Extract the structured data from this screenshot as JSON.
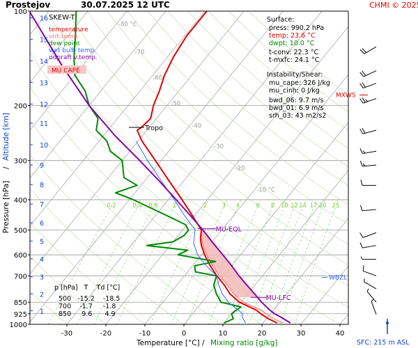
{
  "header": {
    "station": "Prostejov",
    "datetime": "30.07.2025 12 UTC",
    "credit": "CHMI © 2025"
  },
  "legend": {
    "title": "SKEW-T",
    "items": [
      {
        "label": "temperature",
        "color": "#dd0000"
      },
      {
        "label": "virt.temp.",
        "color": "#ff7777"
      },
      {
        "label": "dew point",
        "color": "#008800"
      },
      {
        "label": "wet bulb temp.",
        "color": "#3366ff"
      },
      {
        "label": "udpraft v.temp.",
        "color": "#8800aa"
      }
    ],
    "cape_label": "MU CAPE"
  },
  "surface": {
    "heading": "Surface:",
    "press": "press: 990.2 hPa",
    "temp": "temp: 23.6 °C",
    "dwpt": "dwpt: 10.0 °C",
    "tconv": "t-conv: 22.3 °C",
    "tmxfc": "t-mxfc: 24.1 °C"
  },
  "instability": {
    "heading": "Instability/Shear:",
    "mu_cape": "mu_cape: 326 J/kg",
    "mu_cinh": "mu_cinh: 0 J/kg",
    "bwd_06": "bwd_06: 9.7 m/s",
    "bwd_01": "bwd_01: 6.9 m/s",
    "srh_03": "srh_03: 43 m2/s2"
  },
  "table": {
    "header": "p [hPa]   T    Td [°C]",
    "rows": [
      "500   -15.2    -18.5",
      "700    -1.7     -1.8",
      "850     9.6      4.9"
    ]
  },
  "annotations": {
    "tropo": "Tropo",
    "mu_eql": "MU-EQL",
    "mu_lfc": "MU-LFC",
    "wbzl": "WBZL",
    "mxws": "MXWS",
    "sfc": "SFC: 215 m ASL"
  },
  "axes": {
    "xlabel": "Temperature [°C]",
    "xlabel_sep": "/",
    "xlabel2": "Mixing ratio [g/kg]",
    "ylabel_left": "Pressure [hPa]",
    "ylabel_sep": "/",
    "ylabel_right": "Altitude [km]"
  },
  "chart_data": {
    "type": "line",
    "title": "Prostejov 30.07.2025 12 UTC",
    "xlabel": "Temperature [°C] / Mixing ratio [g/kg]",
    "ylabel": "Pressure [hPa] / Altitude [km]",
    "xlim": [
      -35,
      45
    ],
    "ylim": [
      1000,
      100
    ],
    "y_log_scale": true,
    "pressure_ticks": [
      100,
      200,
      300,
      400,
      500,
      600,
      700,
      850,
      925,
      1000
    ],
    "temperature_ticks": [
      -30,
      -20,
      -10,
      0,
      10,
      20,
      30,
      40
    ],
    "altitude_ticks": [
      {
        "km": 1,
        "p": 905
      },
      {
        "km": 2,
        "p": 800
      },
      {
        "km": 3,
        "p": 705
      },
      {
        "km": 4,
        "p": 618
      },
      {
        "km": 5,
        "p": 542
      },
      {
        "km": 6,
        "p": 474
      },
      {
        "km": 7,
        "p": 413
      },
      {
        "km": 8,
        "p": 358
      },
      {
        "km": 9,
        "p": 310
      },
      {
        "km": 10,
        "p": 267
      },
      {
        "km": 11,
        "p": 228
      },
      {
        "km": 12,
        "p": 198
      },
      {
        "km": 13,
        "p": 169
      },
      {
        "km": 14,
        "p": 144
      },
      {
        "km": 15,
        "p": 123
      },
      {
        "km": 16,
        "p": 105
      }
    ],
    "isotherm_labels": [
      {
        "t": -80,
        "label": "-80 °C"
      },
      {
        "t": -70,
        "label": "-70"
      },
      {
        "t": -60,
        "label": "-60"
      },
      {
        "t": -50,
        "label": "-50"
      },
      {
        "t": -40,
        "label": "-40"
      },
      {
        "t": -30,
        "label": "-30"
      },
      {
        "t": -20,
        "label": "-20"
      },
      {
        "t": -10,
        "label": "-10 °C"
      }
    ],
    "mixing_ratio_labels": [
      "0.2",
      "0.4",
      "0.6",
      "1",
      "2",
      "3",
      "4",
      "6",
      "8",
      "10",
      "12",
      "14",
      "17",
      "20",
      "25"
    ],
    "mixing_ratio_values": [
      0.2,
      0.4,
      0.6,
      1,
      2,
      3,
      4,
      6,
      8,
      10,
      12,
      14,
      17,
      20,
      25
    ],
    "series": [
      {
        "name": "temperature",
        "color": "#dd0000",
        "points": [
          [
            990,
            23.6
          ],
          [
            960,
            20.5
          ],
          [
            925,
            17.5
          ],
          [
            900,
            15.5
          ],
          [
            850,
            9.6
          ],
          [
            800,
            5.5
          ],
          [
            750,
            2.2
          ],
          [
            700,
            -1.7
          ],
          [
            650,
            -5.5
          ],
          [
            600,
            -9.2
          ],
          [
            560,
            -12.0
          ],
          [
            530,
            -13.8
          ],
          [
            500,
            -15.2
          ],
          [
            450,
            -20.5
          ],
          [
            400,
            -26.5
          ],
          [
            350,
            -33.5
          ],
          [
            300,
            -41.5
          ],
          [
            260,
            -49.0
          ],
          [
            240,
            -52.5
          ],
          [
            235,
            -52.0
          ],
          [
            220,
            -51.5
          ],
          [
            200,
            -53.5
          ],
          [
            180,
            -55.0
          ],
          [
            160,
            -57.0
          ],
          [
            140,
            -58.5
          ],
          [
            120,
            -59.5
          ],
          [
            100,
            -59.5
          ]
        ]
      },
      {
        "name": "virt.temp.",
        "color": "#ff7777",
        "points": [
          [
            990,
            25.2
          ],
          [
            960,
            21.9
          ],
          [
            925,
            18.8
          ],
          [
            900,
            16.8
          ],
          [
            850,
            10.6
          ],
          [
            800,
            6.4
          ],
          [
            750,
            3.0
          ],
          [
            700,
            -1.0
          ],
          [
            650,
            -4.9
          ],
          [
            600,
            -8.7
          ],
          [
            560,
            -11.6
          ],
          [
            530,
            -13.5
          ],
          [
            500,
            -15.0
          ]
        ]
      },
      {
        "name": "dew point",
        "color": "#008800",
        "points": [
          [
            990,
            10.0
          ],
          [
            960,
            11.5
          ],
          [
            925,
            10.0
          ],
          [
            880,
            11.0
          ],
          [
            850,
            4.9
          ],
          [
            800,
            2.0
          ],
          [
            750,
            -0.5
          ],
          [
            700,
            -1.8
          ],
          [
            680,
            -8.0
          ],
          [
            650,
            -9.5
          ],
          [
            630,
            -5.0
          ],
          [
            600,
            -16.0
          ],
          [
            580,
            -14.5
          ],
          [
            560,
            -26.0
          ],
          [
            545,
            -20.0
          ],
          [
            520,
            -18.5
          ],
          [
            500,
            -18.5
          ],
          [
            480,
            -20.5
          ],
          [
            450,
            -27.0
          ],
          [
            420,
            -34.0
          ],
          [
            400,
            -39.0
          ],
          [
            380,
            -45.0
          ],
          [
            360,
            -41.0
          ],
          [
            340,
            -46.0
          ],
          [
            300,
            -50.0
          ],
          [
            280,
            -55.0
          ],
          [
            260,
            -58.0
          ],
          [
            240,
            -63.0
          ],
          [
            220,
            -65.0
          ],
          [
            200,
            -70.0
          ],
          [
            180,
            -74.0
          ],
          [
            160,
            -80.0
          ],
          [
            140,
            -84.0
          ],
          [
            120,
            -88.0
          ],
          [
            100,
            -93.0
          ]
        ]
      },
      {
        "name": "wet bulb temp.",
        "color": "#3366ff",
        "points": [
          [
            990,
            15.5
          ],
          [
            950,
            13.5
          ],
          [
            925,
            12.8
          ],
          [
            850,
            6.8
          ],
          [
            800,
            3.5
          ],
          [
            750,
            0.8
          ],
          [
            700,
            -1.8
          ],
          [
            650,
            -6.5
          ],
          [
            600,
            -11.0
          ],
          [
            550,
            -14.5
          ],
          [
            500,
            -16.8
          ],
          [
            450,
            -22.5
          ],
          [
            400,
            -28.5
          ],
          [
            350,
            -35.5
          ],
          [
            300,
            -43.5
          ],
          [
            260,
            -50.5
          ]
        ]
      },
      {
        "name": "udpraft v.temp.",
        "color": "#8800aa",
        "points": [
          [
            990,
            27.0
          ],
          [
            950,
            23.5
          ],
          [
            925,
            21.0
          ],
          [
            900,
            19.0
          ],
          [
            850,
            15.3
          ],
          [
            800,
            11.8
          ],
          [
            750,
            8.0
          ],
          [
            700,
            4.0
          ],
          [
            650,
            0.0
          ],
          [
            600,
            -4.5
          ],
          [
            550,
            -9.5
          ],
          [
            500,
            -14.8
          ],
          [
            450,
            -21.0
          ],
          [
            400,
            -28.0
          ],
          [
            350,
            -36.0
          ],
          [
            300,
            -45.5
          ],
          [
            250,
            -57.0
          ],
          [
            200,
            -70.0
          ],
          [
            150,
            -85.0
          ],
          [
            100,
            -105.0
          ]
        ]
      }
    ],
    "levels": {
      "tropopause_hpa": 235,
      "mu_eql_hpa": 495,
      "mu_lfc_hpa": 820,
      "wbzl_hpa": 680,
      "mxws_hpa": 190
    },
    "winds": [
      {
        "p": 130,
        "dir": 240,
        "spd": 10
      },
      {
        "p": 155,
        "dir": 245,
        "spd": 10
      },
      {
        "p": 170,
        "dir": 250,
        "spd": 10
      },
      {
        "p": 190,
        "dir": 250,
        "spd": 12
      },
      {
        "p": 240,
        "dir": 255,
        "spd": 10
      },
      {
        "p": 280,
        "dir": 260,
        "spd": 8
      },
      {
        "p": 310,
        "dir": 265,
        "spd": 8
      },
      {
        "p": 360,
        "dir": 270,
        "spd": 6
      },
      {
        "p": 430,
        "dir": 265,
        "spd": 6
      },
      {
        "p": 510,
        "dir": 250,
        "spd": 4
      },
      {
        "p": 560,
        "dir": 260,
        "spd": 4
      },
      {
        "p": 620,
        "dir": 270,
        "spd": 3
      },
      {
        "p": 700,
        "dir": 290,
        "spd": 4
      },
      {
        "p": 770,
        "dir": 300,
        "spd": 3
      },
      {
        "p": 850,
        "dir": 320,
        "spd": 3
      },
      {
        "p": 930,
        "dir": 340,
        "spd": 2
      }
    ]
  }
}
